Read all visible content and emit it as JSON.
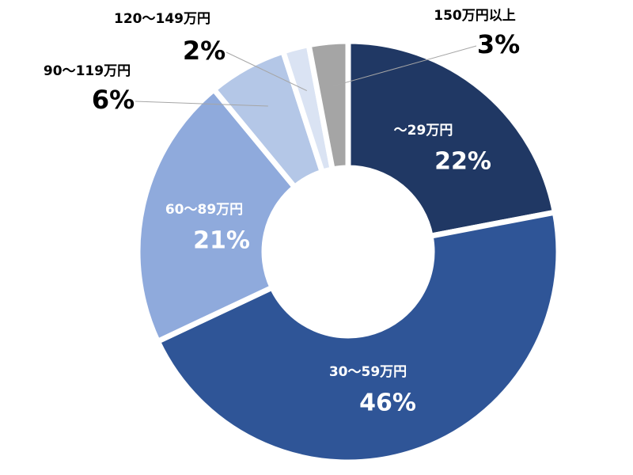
{
  "chart_data": {
    "type": "donut",
    "categories": [
      "～29万円",
      "30～59万円",
      "60～89万円",
      "90～119万円",
      "120～149万円",
      "150万円以上"
    ],
    "values": [
      22,
      46,
      21,
      6,
      2,
      3
    ],
    "value_labels": [
      "22%",
      "46%",
      "21%",
      "6%",
      "2%",
      "3%"
    ],
    "colors": [
      "#203864",
      "#2f5597",
      "#8faadc",
      "#b4c7e7",
      "#dae3f3",
      "#a5a5a5"
    ]
  }
}
